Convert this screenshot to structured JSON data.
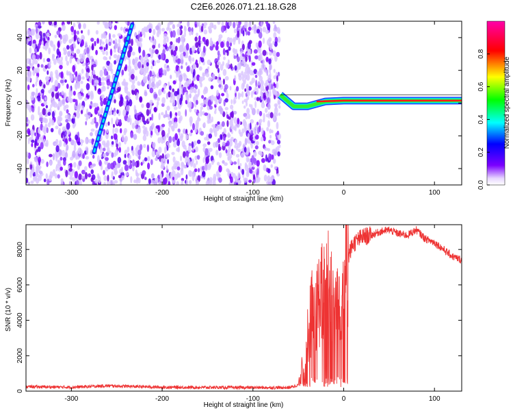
{
  "title": "C2E6.2026.071.21.18.G28",
  "chart_data": [
    {
      "type": "heatmap",
      "name": "spectrogram",
      "xlabel": "Height of straight line (km)",
      "ylabel": "Frequency (Hz)",
      "xlim": [
        -350,
        130
      ],
      "ylim": [
        -50,
        50
      ],
      "xticks": [
        -300,
        -200,
        -100,
        0,
        100
      ],
      "yticks": [
        -40,
        -20,
        0,
        20,
        40
      ],
      "xtick_labels": [
        "-300",
        "-200",
        "-100",
        "0",
        "100"
      ],
      "ytick_labels": [
        "-40",
        "-20",
        "0",
        "20",
        "40"
      ],
      "noise_region_x": [
        -350,
        -70
      ],
      "signal_track_steep": {
        "x": [
          -275,
          -233
        ],
        "freq": [
          -30,
          48
        ]
      },
      "signal_track_flat": {
        "x": [
          -70,
          -55,
          -40,
          -20,
          0,
          50,
          130
        ],
        "freq": [
          5,
          -2,
          -2,
          1,
          1.5,
          1.5,
          1.5
        ]
      },
      "colorbar": {
        "label": "Normalized spectral amplitude",
        "range": [
          0,
          1
        ],
        "ticks": [
          0.0,
          0.2,
          0.4,
          0.6,
          0.8
        ],
        "tick_labels": [
          "0.0",
          "0.2",
          "0.4",
          "0.6",
          "0.8"
        ],
        "colors": [
          "#ffffff",
          "#7b00ff",
          "#0000ff",
          "#00ffff",
          "#00ff00",
          "#ffff00",
          "#ff0000",
          "#ff00aa"
        ]
      }
    },
    {
      "type": "line",
      "name": "snr",
      "xlabel": "Height of straight line (km)",
      "ylabel": "SNR (10 * v/v)",
      "xlim": [
        -350,
        130
      ],
      "ylim": [
        0,
        9400
      ],
      "xticks": [
        -300,
        -200,
        -100,
        0,
        100
      ],
      "yticks": [
        0,
        2000,
        4000,
        6000,
        8000
      ],
      "xtick_labels": [
        "-300",
        "-200",
        "-100",
        "0",
        "100"
      ],
      "ytick_labels": [
        "0",
        "2000",
        "4000",
        "6000",
        "8000"
      ],
      "color": "#ee3333",
      "series": [
        {
          "name": "SNR",
          "x": [
            -350,
            -300,
            -260,
            -200,
            -100,
            -60,
            -50,
            -45,
            -40,
            -35,
            -30,
            -25,
            -20,
            -15,
            -10,
            -5,
            0,
            5,
            10,
            20,
            30,
            40,
            50,
            60,
            70,
            80,
            90,
            100,
            110,
            120,
            130
          ],
          "y": [
            250,
            220,
            300,
            220,
            200,
            200,
            350,
            1500,
            3000,
            4500,
            4800,
            5500,
            5500,
            6500,
            4800,
            5500,
            6300,
            7600,
            8300,
            8700,
            8800,
            9000,
            9100,
            8900,
            8800,
            9100,
            8600,
            8400,
            8000,
            7600,
            7400
          ]
        }
      ]
    }
  ]
}
